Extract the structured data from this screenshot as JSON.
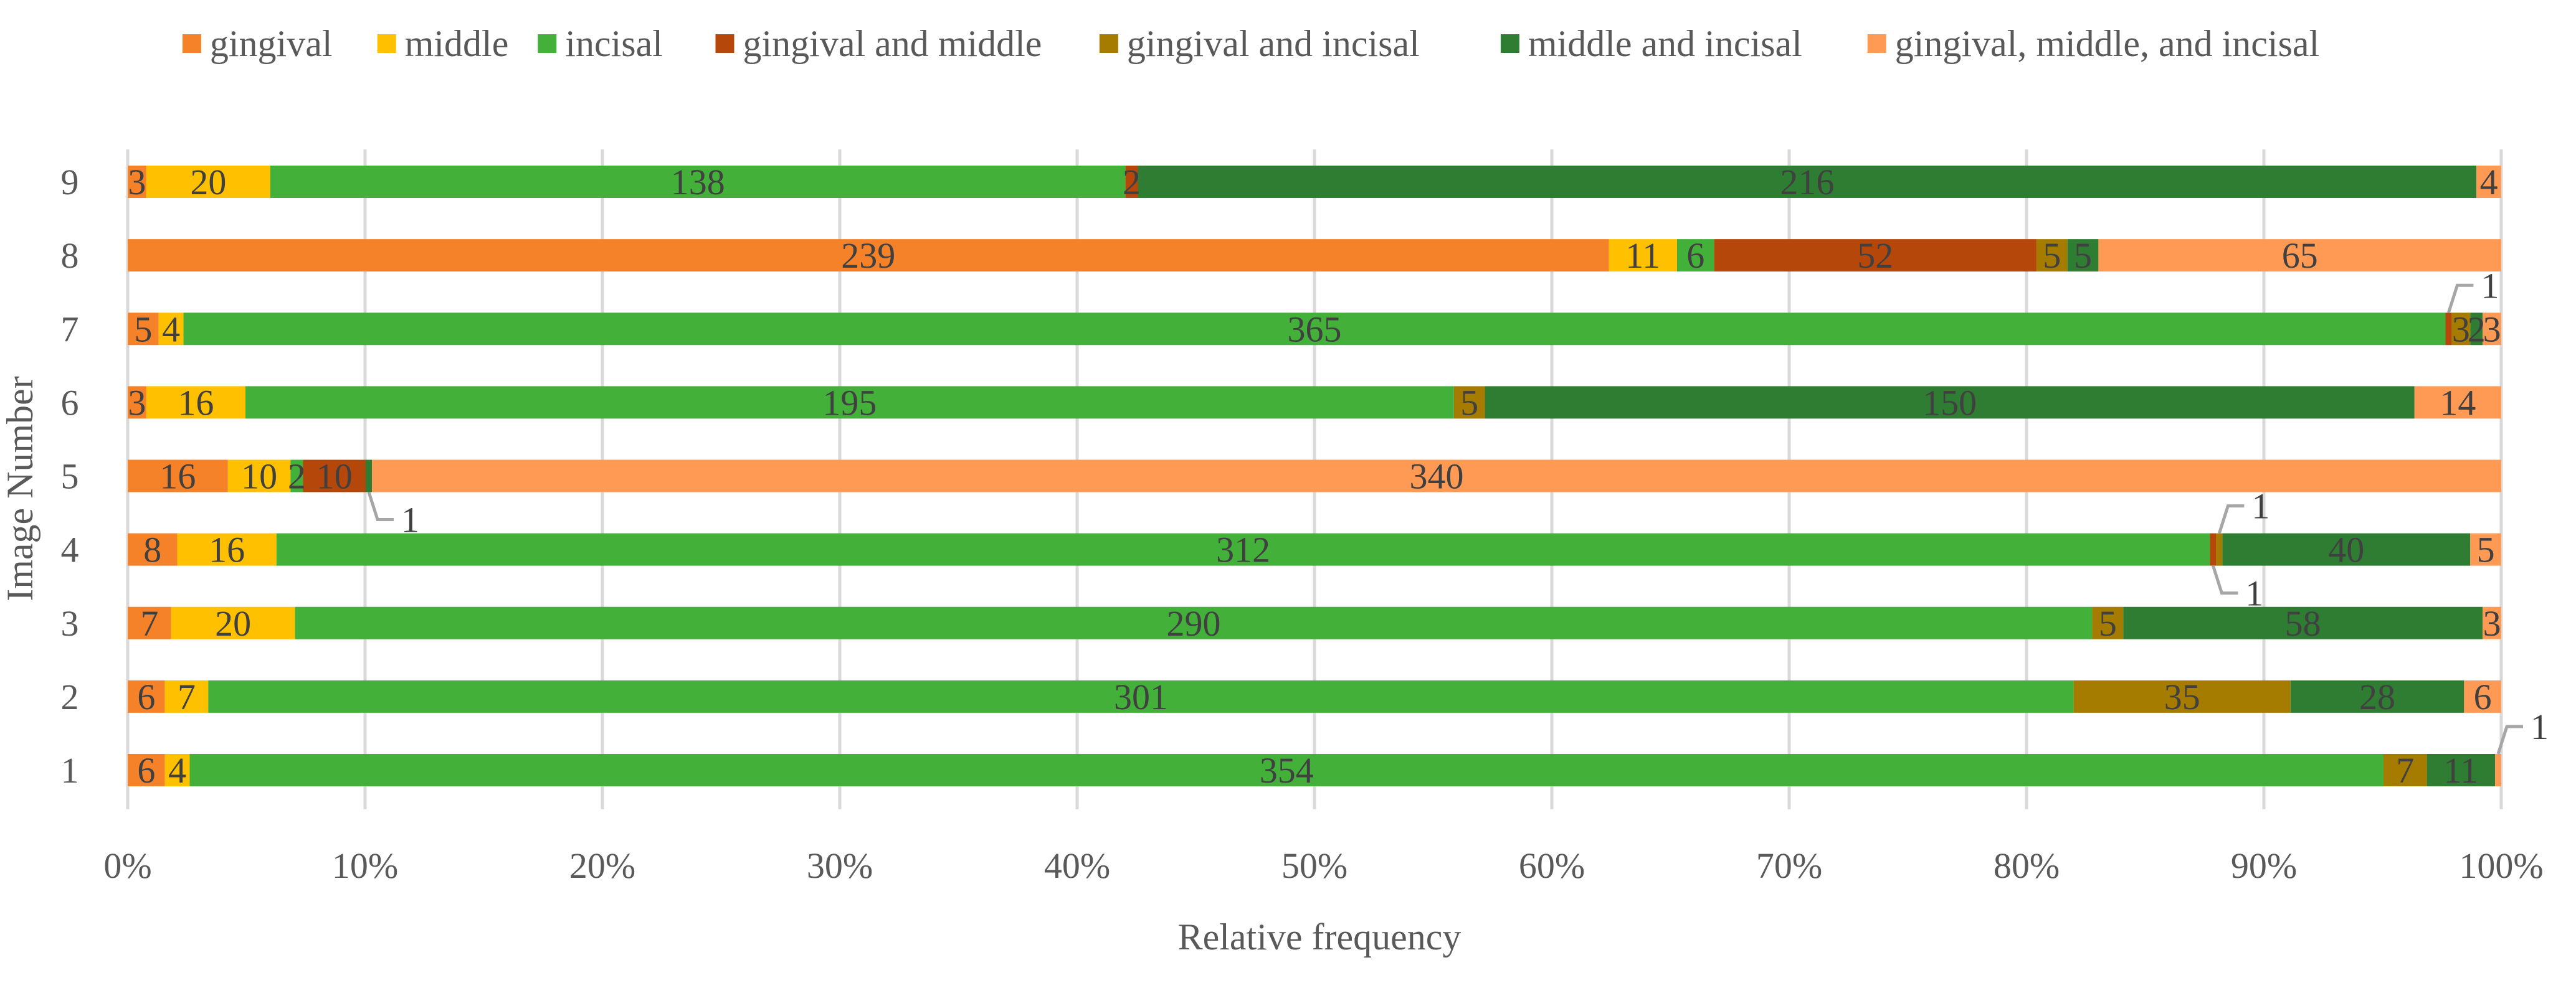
{
  "chart_data": {
    "type": "bar",
    "orientation": "horizontal",
    "stacked": "percent",
    "title": "",
    "xlabel": "Relative frequency",
    "ylabel": "Image Number",
    "xlim": [
      0,
      100
    ],
    "x_ticks": [
      "0%",
      "10%",
      "20%",
      "30%",
      "40%",
      "50%",
      "60%",
      "70%",
      "80%",
      "90%",
      "100%"
    ],
    "categories": [
      "1",
      "2",
      "3",
      "4",
      "5",
      "6",
      "7",
      "8",
      "9"
    ],
    "legend_position": "top",
    "grid": true,
    "series": [
      {
        "name": "gingival",
        "color": "#F58229",
        "values": [
          6,
          6,
          7,
          8,
          16,
          3,
          5,
          239,
          3
        ]
      },
      {
        "name": "middle",
        "color": "#FFC000",
        "values": [
          4,
          7,
          20,
          16,
          10,
          16,
          4,
          11,
          20
        ]
      },
      {
        "name": "incisal",
        "color": "#43B03A",
        "values": [
          354,
          301,
          290,
          312,
          2,
          195,
          365,
          6,
          138
        ]
      },
      {
        "name": "gingival and middle",
        "color": "#B5470B",
        "values": [
          0,
          0,
          0,
          1,
          10,
          0,
          1,
          52,
          2
        ]
      },
      {
        "name": "gingival and incisal",
        "color": "#A57B00",
        "values": [
          7,
          35,
          5,
          1,
          0,
          5,
          3,
          5,
          0
        ]
      },
      {
        "name": "middle and incisal",
        "color": "#2E7D32",
        "values": [
          11,
          28,
          58,
          40,
          1,
          150,
          2,
          5,
          216
        ]
      },
      {
        "name": "gingival, middle, and incisal",
        "color": "#FF9A55",
        "values": [
          1,
          6,
          3,
          5,
          340,
          14,
          3,
          65,
          4
        ]
      }
    ]
  }
}
